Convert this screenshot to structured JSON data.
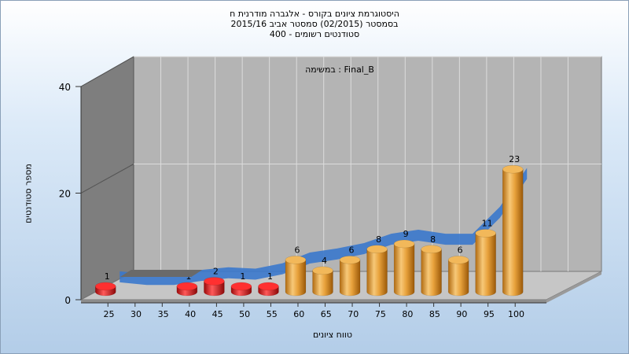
{
  "header": {
    "title": "היסטוגרמת ציונים בקורס - אלגברה מודרנית ח",
    "semester": "בסמסטר  (02/2015)  סמסטר אביב 2015/16",
    "students": "סטודנטים רשומים - 400"
  },
  "chart_data": {
    "type": "bar",
    "title": "היסטוגרמת ציונים בקורס - אלגברה מודרנית ח",
    "subtitle": "במשימה : Final_B",
    "xlabel": "טווח ציונים",
    "ylabel": "מספר סטודנטים",
    "ylim": [
      0,
      40
    ],
    "yticks": [
      0,
      20,
      40
    ],
    "categories": [
      "25",
      "30",
      "35",
      "40",
      "45",
      "50",
      "55",
      "60",
      "65",
      "70",
      "75",
      "80",
      "85",
      "90",
      "95",
      "100"
    ],
    "values": [
      1,
      0,
      0,
      1,
      2,
      1,
      1,
      6,
      4,
      6,
      8,
      9,
      8,
      6,
      11,
      23
    ],
    "failing_color": "#dd1a1a",
    "passing_color": "#e8a23c",
    "trend_color": "#3a78cc",
    "grid": true,
    "legend": "none",
    "view": "3d"
  }
}
